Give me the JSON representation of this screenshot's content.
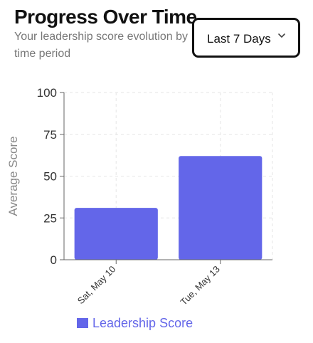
{
  "header": {
    "title": "Progress Over Time",
    "subtitle": "Your leadership score evolution by time period"
  },
  "range_select": {
    "value": "Last 7 Days",
    "icon": "chevron-down-icon"
  },
  "colors": {
    "bar": "#6366e9",
    "legend_text": "#6366e9",
    "grid": "#e6e6e6",
    "axis": "#666666"
  },
  "chart_data": {
    "type": "bar",
    "categories": [
      "Sat, May 10",
      "Tue, May 13"
    ],
    "series": [
      {
        "name": "Leadership Score",
        "values": [
          31,
          62
        ]
      }
    ],
    "xlabel": "",
    "ylabel": "Average Score",
    "ylim": [
      0,
      100
    ],
    "yticks": [
      0,
      25,
      50,
      75,
      100
    ],
    "grid": true,
    "legend": "bottom"
  }
}
